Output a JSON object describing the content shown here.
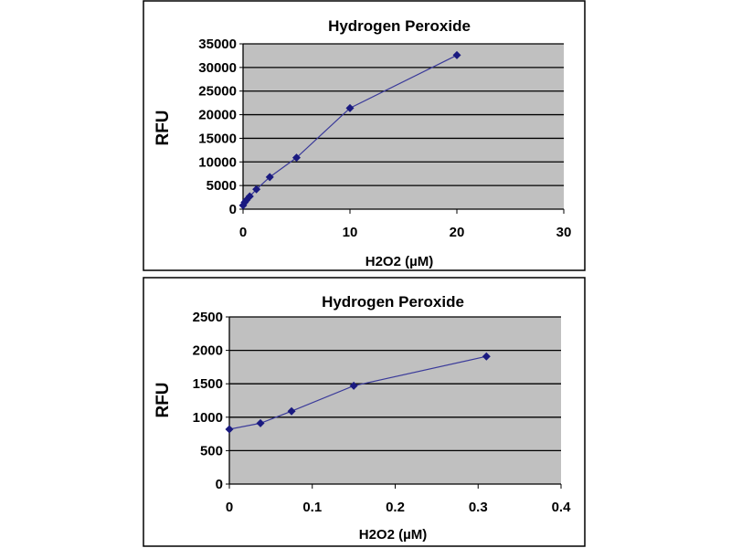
{
  "chart_data": [
    {
      "type": "line",
      "title": "Hydrogen Peroxide",
      "xlabel": "H2O2 (µM)",
      "ylabel": "RFU",
      "xlim": [
        0,
        30
      ],
      "ylim": [
        0,
        35000
      ],
      "xticks": [
        "0",
        "10",
        "20",
        "30"
      ],
      "yticks": [
        "0",
        "5000",
        "10000",
        "15000",
        "20000",
        "25000",
        "30000",
        "35000"
      ],
      "grid": true,
      "legend": "none",
      "series": [
        {
          "name": "H2O2",
          "color": "#1a1a80",
          "x": [
            0,
            0.156,
            0.3125,
            0.625,
            1.25,
            2.5,
            5,
            10,
            20
          ],
          "y": [
            800,
            1450,
            1900,
            2700,
            4200,
            6800,
            10900,
            21400,
            32600
          ]
        }
      ]
    },
    {
      "type": "line",
      "title": "Hydrogen Peroxide",
      "xlabel": "H2O2 (µM)",
      "ylabel": "RFU",
      "xlim": [
        0,
        0.4
      ],
      "ylim": [
        0,
        2500
      ],
      "xticks": [
        "0",
        "0.1",
        "0.2",
        "0.3",
        "0.4"
      ],
      "yticks": [
        "0",
        "500",
        "1000",
        "1500",
        "2000",
        "2500"
      ],
      "grid": true,
      "legend": "none",
      "series": [
        {
          "name": "H2O2",
          "color": "#1a1a80",
          "x": [
            0,
            0.0375,
            0.075,
            0.15,
            0.31
          ],
          "y": [
            820,
            910,
            1090,
            1470,
            1910
          ]
        }
      ]
    }
  ]
}
